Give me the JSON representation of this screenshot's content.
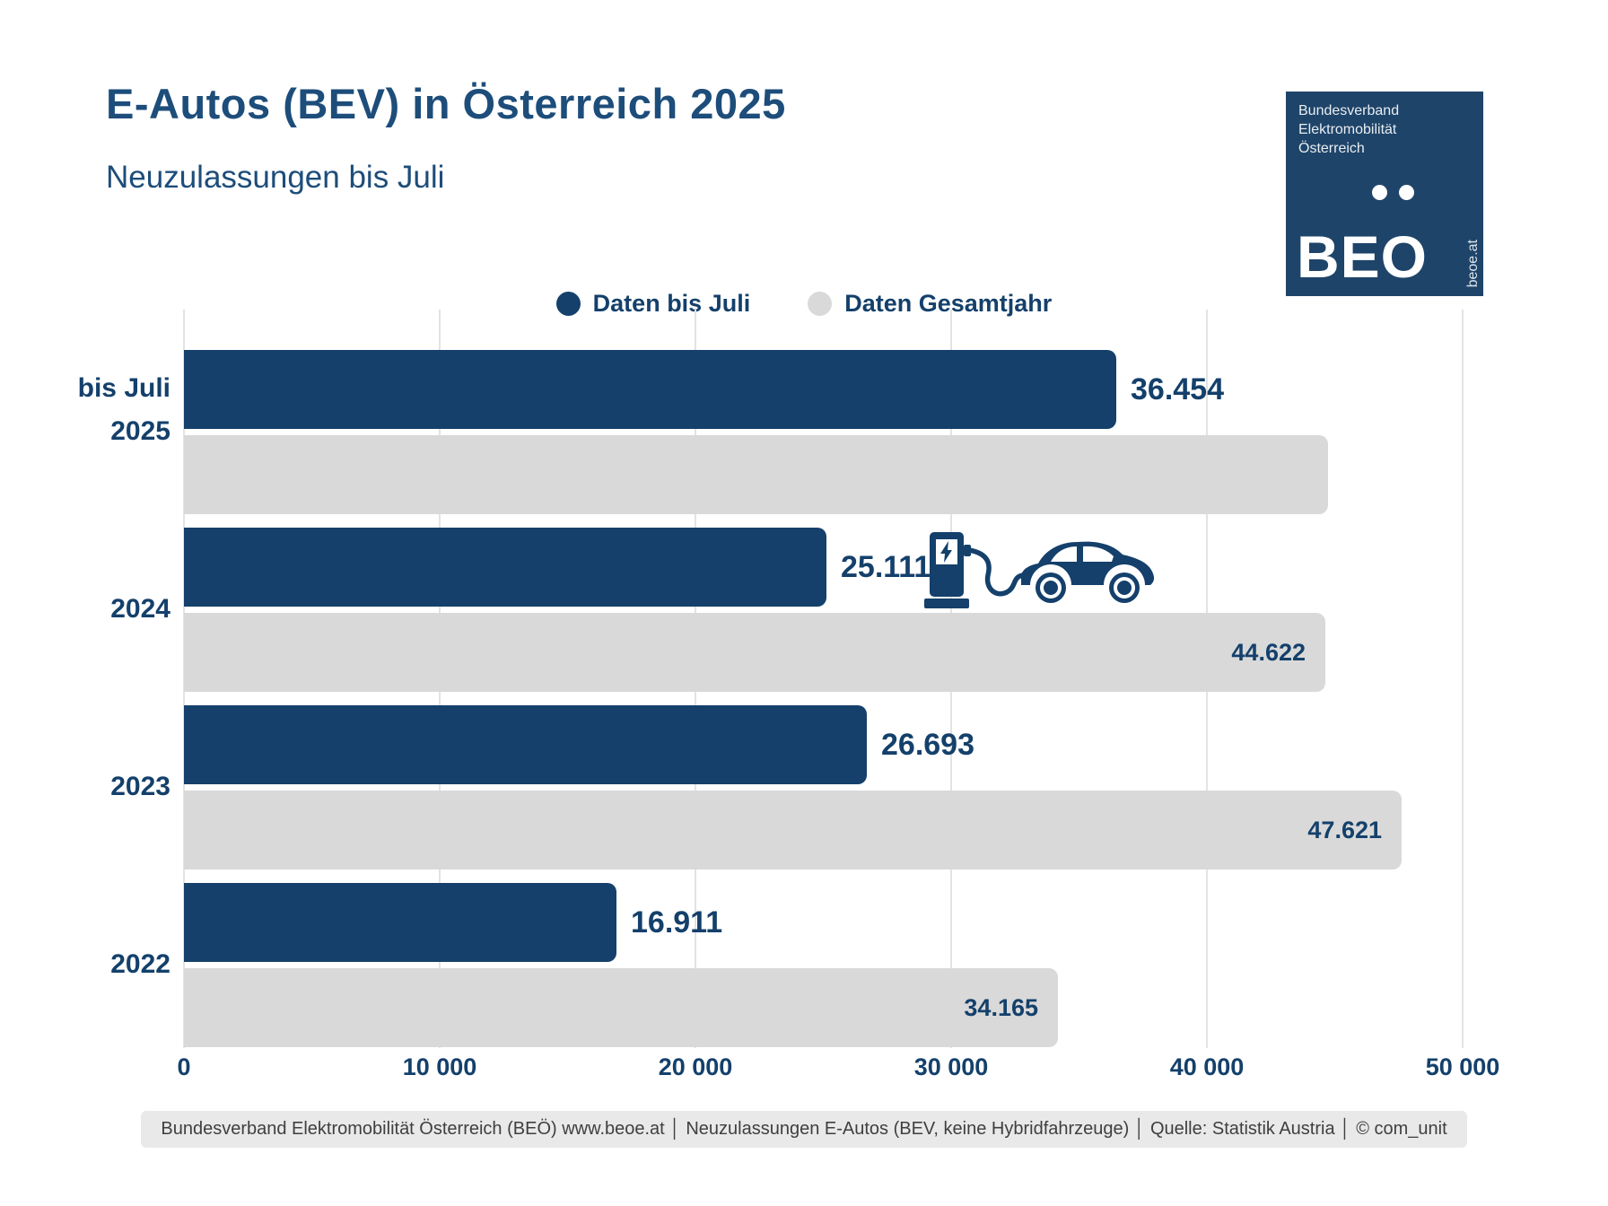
{
  "title": "E-Autos (BEV) in Österreich 2025",
  "subtitle": "Neuzulassungen bis Juli",
  "logo": {
    "org_lines": [
      "Bundesverband",
      "Elektromobilität",
      "Österreich"
    ],
    "acronym": "BEO",
    "site": "beoe.at"
  },
  "legend": [
    {
      "label": "Daten bis Juli",
      "color": "#14406B"
    },
    {
      "label": "Daten Gesamtjahr",
      "color": "#D9D9D9"
    }
  ],
  "colors": {
    "navy": "#14406B",
    "title_navy": "#1D4D7A",
    "gray_bar": "#D9D9D9",
    "gridline": "#E3E3E3",
    "footer_bg": "#E9E9E9",
    "footer_text": "#3F3F3F",
    "logo_bg": "#1E4469"
  },
  "chart_data": {
    "type": "bar",
    "orientation": "horizontal",
    "categories": [
      "2025",
      "2024",
      "2023",
      "2022"
    ],
    "row_label_top": "bis Juli",
    "series": [
      {
        "name": "Daten bis Juli",
        "color": "#14406B",
        "values": [
          36454,
          25111,
          26693,
          16911
        ],
        "labels": [
          "36.454",
          "25.111",
          "26.693",
          "16.911"
        ]
      },
      {
        "name": "Daten Gesamtjahr",
        "color": "#D9D9D9",
        "values": [
          44750,
          44622,
          47621,
          34165
        ],
        "labels": [
          "",
          "44.622",
          "47.621",
          "34.165"
        ]
      }
    ],
    "note": "2025 Gesamtjahr bar is drawn without a printed value label; its length (~44 750) is estimated from the pixels.",
    "xlim": [
      0,
      50000
    ],
    "x_tick_values": [
      0,
      10000,
      20000,
      30000,
      40000,
      50000
    ],
    "x_ticks": [
      "0",
      "10 000",
      "20 000",
      "30 000",
      "40 000",
      "50 000"
    ],
    "gridlines": true,
    "legend_position": "top-center"
  },
  "footer": {
    "text": "Bundesverband Elektromobilität Österreich (BEÖ) www.beoe.at │ Neuzulassungen E-Autos (BEV, keine Hybridfahrzeuge) │ Quelle: Statistik Austria │ © com_unit"
  }
}
